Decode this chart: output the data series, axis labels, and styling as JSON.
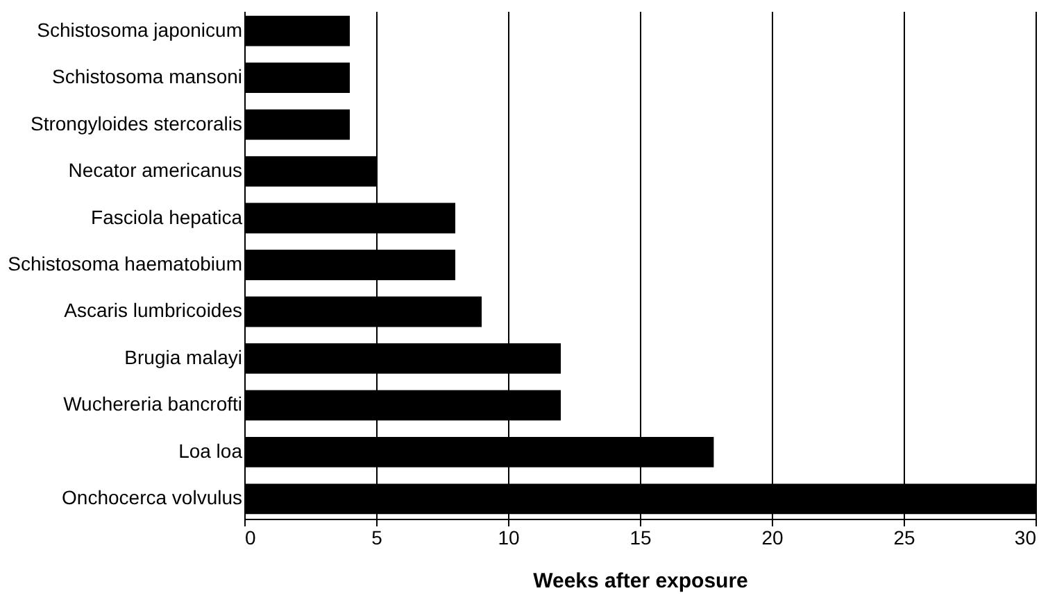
{
  "chart_data": {
    "type": "bar",
    "orientation": "horizontal",
    "xlabel": "Weeks after exposure",
    "categories": [
      "Schistosoma japonicum",
      "Schistosoma mansoni",
      "Strongyloides stercoralis",
      "Necator americanus",
      "Fasciola hepatica",
      "Schistosoma haematobium",
      "Ascaris lumbricoides",
      "Brugia malayi",
      "Wuchereria bancrofti",
      "Loa loa",
      "Onchocerca volvulus"
    ],
    "values": [
      4,
      4,
      4,
      5,
      8,
      8,
      9,
      12,
      12,
      17.8,
      30
    ],
    "color": "#000000",
    "xlim": [
      0,
      30
    ],
    "xticks": [
      0,
      5,
      10,
      15,
      20,
      25,
      30
    ],
    "grid": "x"
  }
}
